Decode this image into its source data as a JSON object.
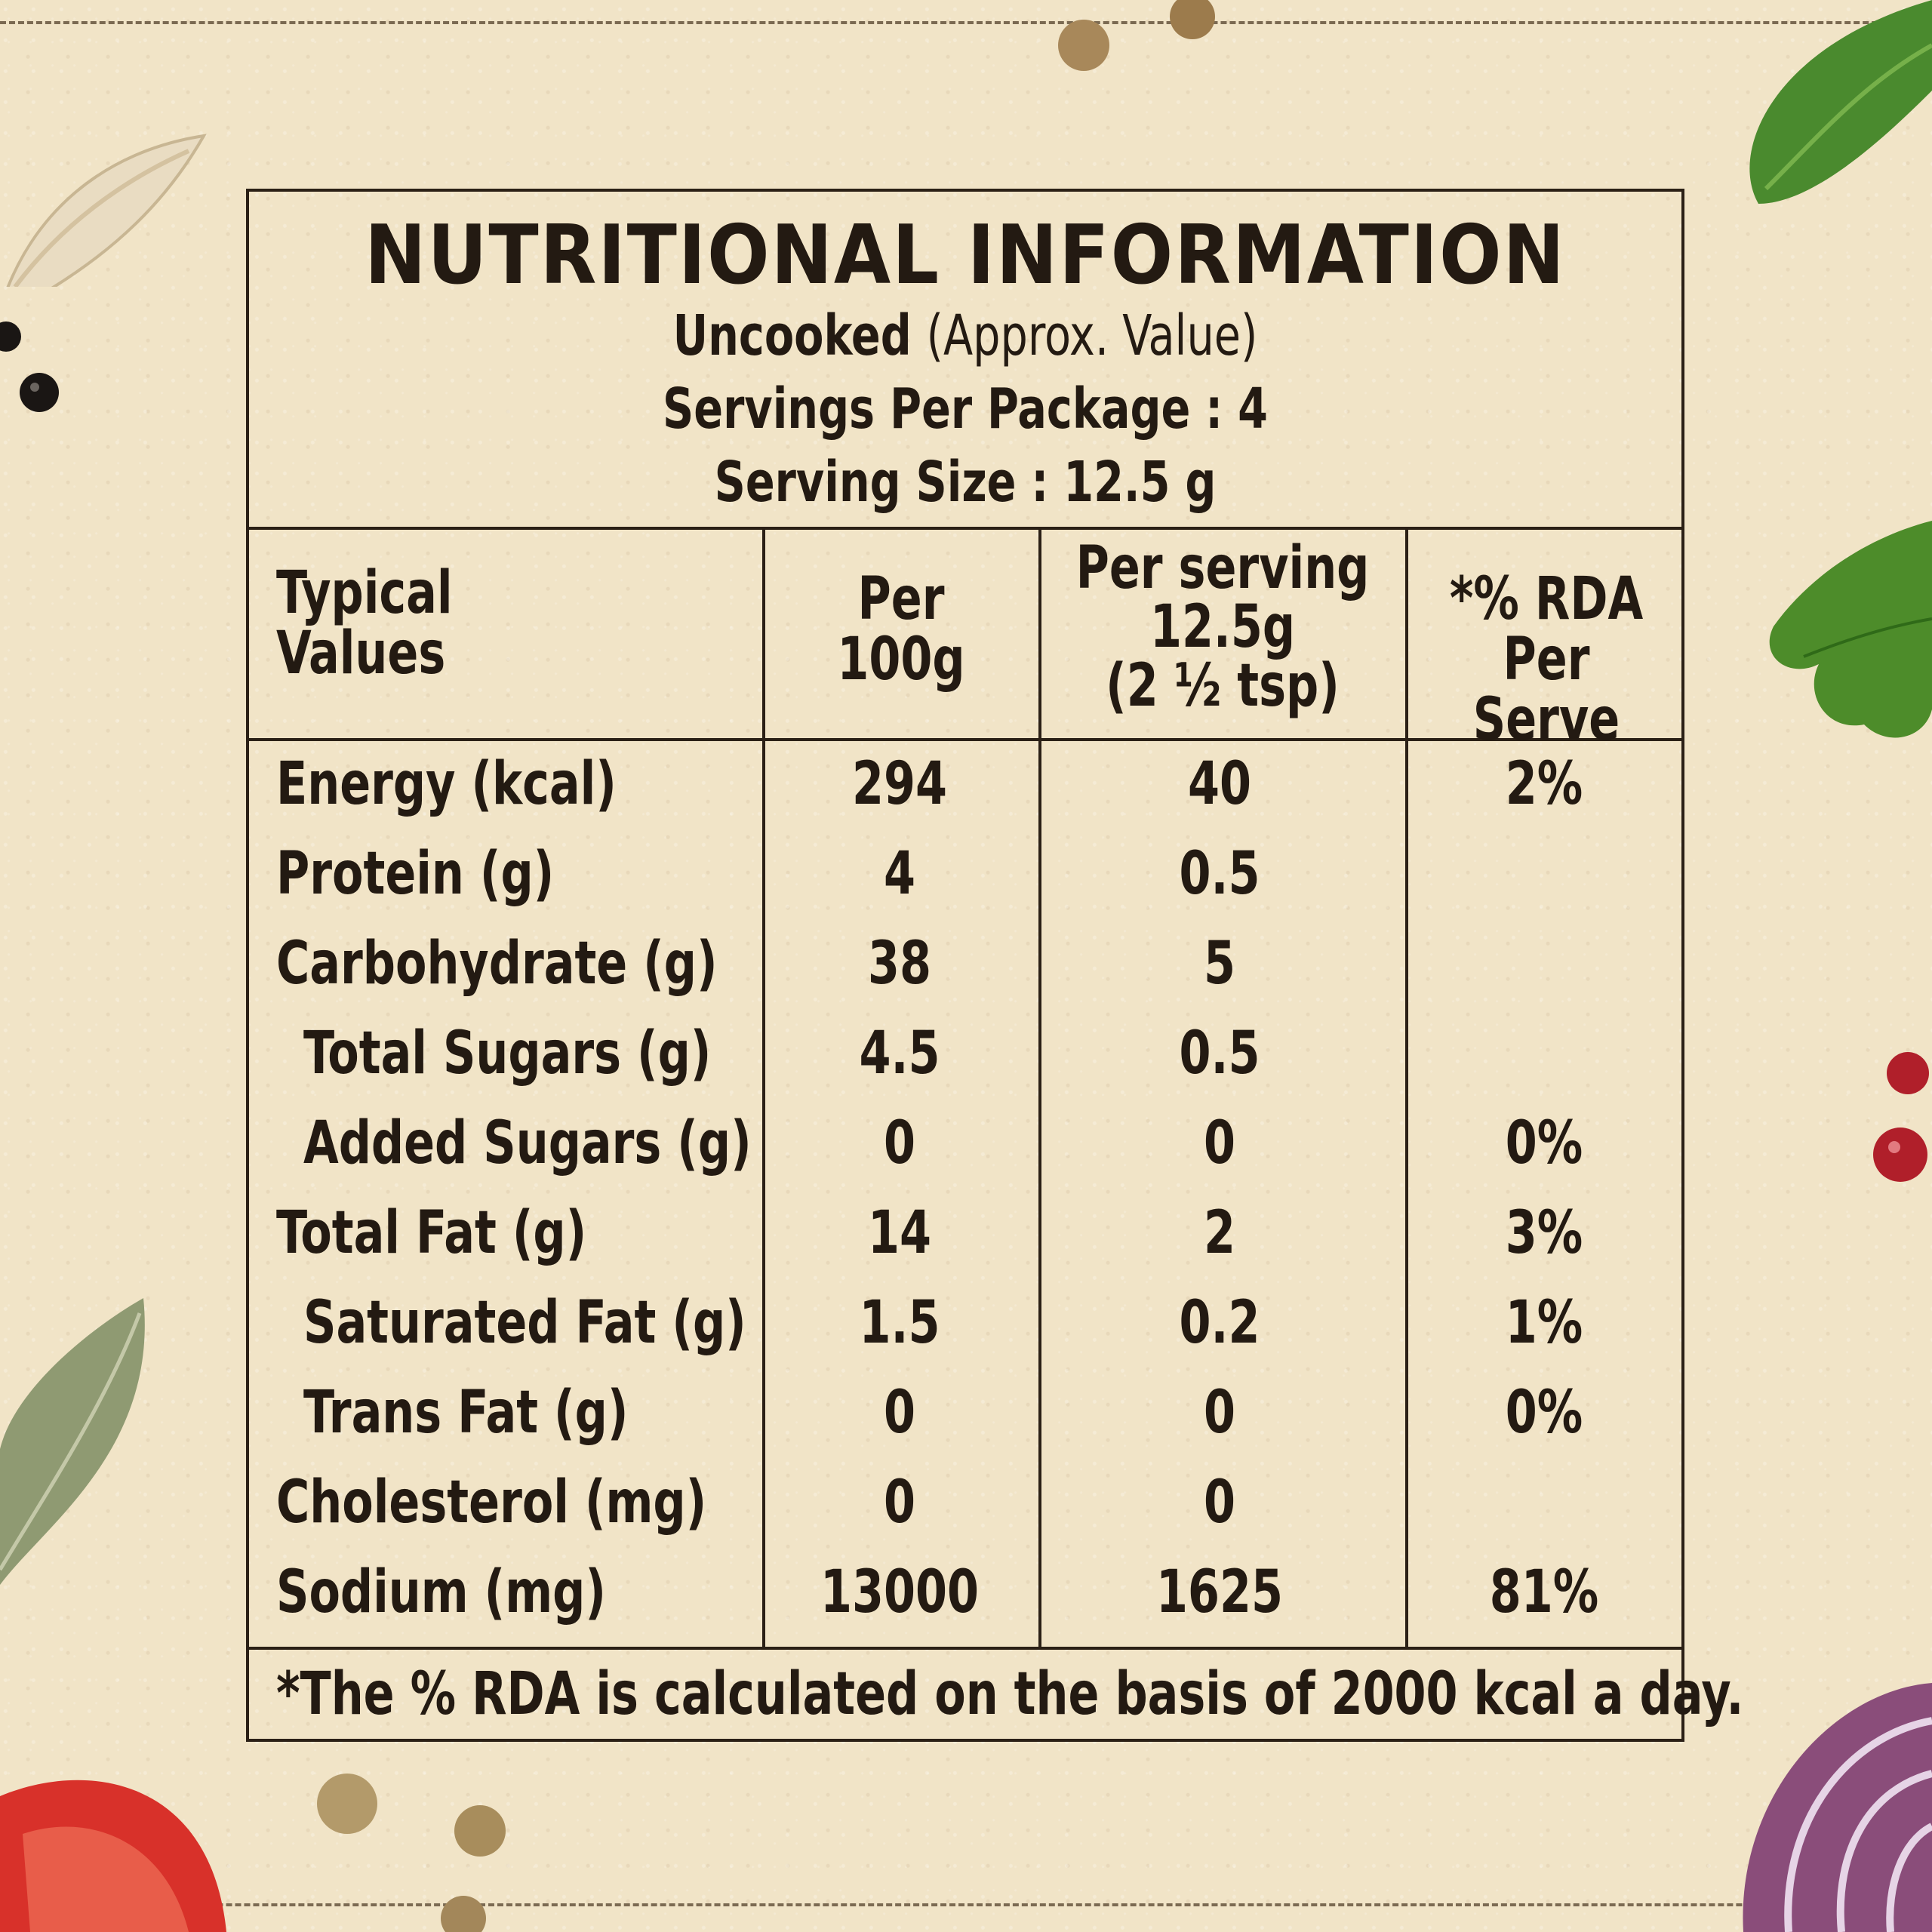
{
  "title": "NUTRITIONAL INFORMATION",
  "uncooked_label": "Uncooked",
  "approx_label": "(Approx. Value)",
  "servings_per_package": "Servings Per Package : 4",
  "serving_size": "Serving Size : 12.5 g",
  "columns": {
    "typical_line1": "Typical",
    "typical_line2": "Values",
    "per100_line1": "Per",
    "per100_line2": "100g",
    "serving_line1": "Per serving",
    "serving_line2": "12.5g",
    "serving_line3": "(2 ½ tsp)",
    "rda_line1": "*% RDA",
    "rda_line2": "Per Serve"
  },
  "rows": [
    {
      "label": "Energy (kcal)",
      "per100": "294",
      "serving": "40",
      "rda": "2%"
    },
    {
      "label": "Protein (g)",
      "per100": "4",
      "serving": "0.5",
      "rda": ""
    },
    {
      "label": "Carbohydrate (g)",
      "per100": "38",
      "serving": "5",
      "rda": ""
    },
    {
      "label": "Total Sugars (g)",
      "per100": "4.5",
      "serving": "0.5",
      "rda": ""
    },
    {
      "label": "Added Sugars (g)",
      "per100": "0",
      "serving": "0",
      "rda": "0%"
    },
    {
      "label": "Total Fat (g)",
      "per100": "14",
      "serving": "2",
      "rda": "3%"
    },
    {
      "label": "Saturated Fat (g)",
      "per100": "1.5",
      "serving": "0.2",
      "rda": "1%"
    },
    {
      "label": "Trans Fat (g)",
      "per100": "0",
      "serving": "0",
      "rda": "0%"
    },
    {
      "label": "Cholesterol (mg)",
      "per100": "0",
      "serving": "0",
      "rda": ""
    },
    {
      "label": "Sodium (mg)",
      "per100": "13000",
      "serving": "1625",
      "rda": "81%"
    }
  ],
  "footnote": "*The % RDA is calculated on the basis of 2000 kcal a day."
}
